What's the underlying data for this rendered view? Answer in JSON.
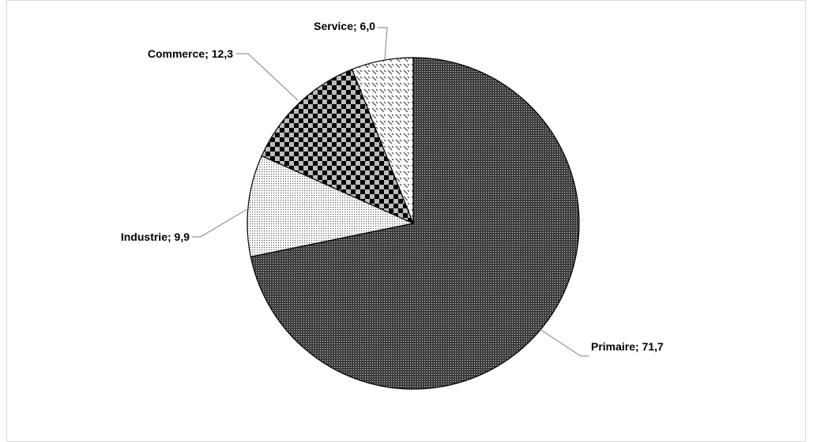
{
  "chart_data": {
    "type": "pie",
    "categories": [
      "Primaire",
      "Industrie",
      "Commerce",
      "Service"
    ],
    "values": [
      71.7,
      9.9,
      12.3,
      6.0
    ],
    "labels": [
      "Primaire; 71,7",
      "Industrie; 9,9",
      "Commerce; 12,3",
      "Service; 6,0"
    ],
    "patterns": [
      "dense-dots",
      "sparse-dots",
      "checkerboard",
      "diagonal-dashes"
    ],
    "start_angle_degrees": 0,
    "direction": "clockwise",
    "slice_outline_color": "#000000",
    "leader_line_color": "#7f7f7f",
    "label_color": "#000000"
  }
}
